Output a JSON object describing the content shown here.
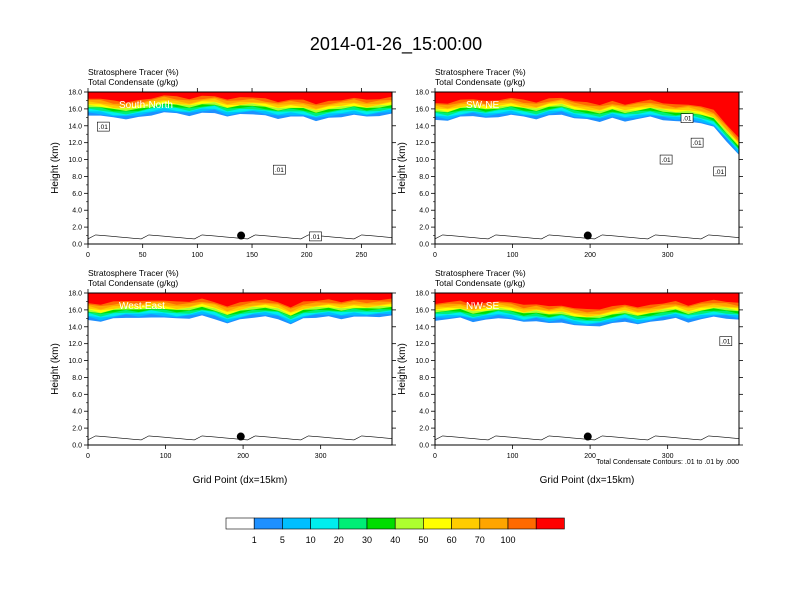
{
  "title": "2014-01-26_15:00:00",
  "colorbar": {
    "colors": [
      "#ffffff",
      "#1e90ff",
      "#00bfff",
      "#00eeee",
      "#00ee76",
      "#00dd00",
      "#adff2f",
      "#ffff00",
      "#ffcc00",
      "#ffa500",
      "#ff6a00",
      "#ff0000"
    ],
    "labels": [
      "1",
      "5",
      "10",
      "20",
      "30",
      "40",
      "50",
      "60",
      "70",
      "100"
    ]
  },
  "footnote": "Total Condensate Contours: .01 to .01 by .000",
  "chart_data": [
    {
      "type": "heatmap",
      "panel": "South-North",
      "header1": "Stratosphere Tracer   (%)",
      "header2": "Total Condensate   (g/kg)",
      "xlabel": "",
      "ylabel": "Height (km)",
      "xlim": [
        0,
        278
      ],
      "ylim": [
        0,
        18
      ],
      "xticks": [
        0,
        50,
        100,
        150,
        200,
        250
      ],
      "yticks": [
        0,
        2,
        4,
        6,
        8,
        10,
        12,
        14,
        16,
        18
      ],
      "tracer_base_km": [
        15.3,
        15.2,
        14.9,
        14.8,
        15.0,
        15.3,
        15.6,
        15.4,
        15.2,
        15.5,
        15.6,
        15.1,
        15.3,
        15.4,
        15.2,
        14.9,
        15.1,
        15.0,
        14.6,
        14.9,
        15.1,
        15.3,
        15.0,
        15.2,
        15.4
      ],
      "contour_labels": [
        {
          "text": ".01",
          "x": 14,
          "y": 13.9
        },
        {
          "text": ".01",
          "x": 175,
          "y": 8.8
        },
        {
          "text": ".01",
          "x": 208,
          "y": 0.9
        }
      ],
      "dot": {
        "x": 140,
        "y": 1.0
      }
    },
    {
      "type": "heatmap",
      "panel": "SW-NE",
      "header1": "Stratosphere Tracer   (%)",
      "header2": "Total Condensate   (g/kg)",
      "xlabel": "",
      "ylabel": "Height (km)",
      "xlim": [
        0,
        392
      ],
      "ylim": [
        0,
        18
      ],
      "xticks": [
        0,
        100,
        200,
        300
      ],
      "yticks": [
        0,
        2,
        4,
        6,
        8,
        10,
        12,
        14,
        16,
        18
      ],
      "tracer_base_km": [
        14.8,
        14.6,
        15.0,
        15.2,
        14.9,
        15.1,
        15.3,
        15.0,
        14.8,
        15.2,
        15.4,
        14.9,
        14.7,
        14.5,
        14.9,
        14.6,
        14.8,
        15.0,
        14.7,
        14.5,
        14.6,
        14.3,
        13.8,
        12.2,
        10.5
      ],
      "contour_labels": [
        {
          "text": ".01",
          "x": 298,
          "y": 10.0
        },
        {
          "text": ".01",
          "x": 325,
          "y": 14.9
        },
        {
          "text": ".01",
          "x": 338,
          "y": 12.0
        },
        {
          "text": ".01",
          "x": 367,
          "y": 8.6
        }
      ],
      "dot": {
        "x": 197,
        "y": 1.0
      }
    },
    {
      "type": "heatmap",
      "panel": "West-East",
      "header1": "Stratosphere Tracer   (%)",
      "header2": "Total Condensate   (g/kg)",
      "xlabel": "Grid Point (dx=15km)",
      "ylabel": "Height (km)",
      "xlim": [
        0,
        392
      ],
      "ylim": [
        0,
        18
      ],
      "xticks": [
        0,
        100,
        200,
        300
      ],
      "yticks": [
        0,
        2,
        4,
        6,
        8,
        10,
        12,
        14,
        16,
        18
      ],
      "tracer_base_km": [
        14.9,
        14.6,
        14.9,
        15.1,
        15.0,
        15.2,
        15.1,
        14.9,
        15.0,
        15.3,
        15.0,
        14.4,
        14.8,
        15.1,
        15.2,
        15.0,
        14.3,
        14.9,
        15.1,
        15.2,
        15.0,
        15.2,
        15.1,
        15.2,
        15.3
      ],
      "contour_labels": [],
      "dot": {
        "x": 197,
        "y": 1.0
      }
    },
    {
      "type": "heatmap",
      "panel": "NW-SE",
      "header1": "Stratosphere Tracer   (%)",
      "header2": "Total Condensate   (g/kg)",
      "xlabel": "Grid Point (dx=15km)",
      "ylabel": "Height (km)",
      "xlim": [
        0,
        392
      ],
      "ylim": [
        0,
        18
      ],
      "xticks": [
        0,
        100,
        200,
        300
      ],
      "yticks": [
        0,
        2,
        4,
        6,
        8,
        10,
        12,
        14,
        16,
        18
      ],
      "tracer_base_km": [
        14.8,
        14.9,
        15.0,
        14.6,
        14.8,
        15.1,
        14.9,
        14.5,
        14.7,
        14.4,
        14.6,
        14.2,
        14.0,
        14.1,
        14.4,
        14.7,
        14.3,
        14.5,
        14.8,
        15.0,
        14.6,
        14.9,
        15.1,
        15.0,
        14.8
      ],
      "contour_labels": [
        {
          "text": ".01",
          "x": 375,
          "y": 12.3
        }
      ],
      "dot": {
        "x": 197,
        "y": 1.0
      }
    }
  ]
}
